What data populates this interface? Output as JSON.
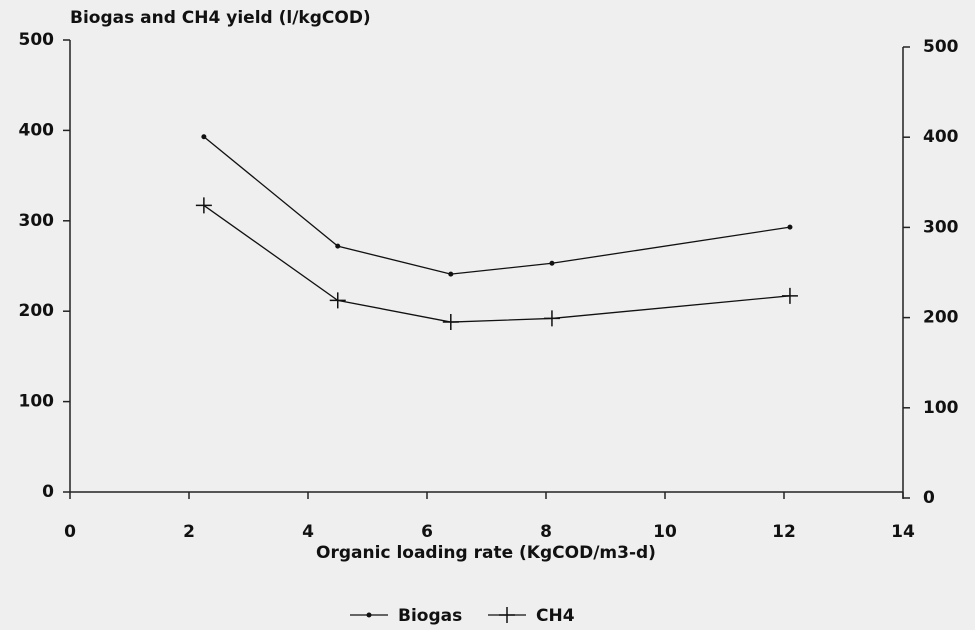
{
  "chart_data": {
    "type": "line",
    "title": "Biogas and CH4 yield (l/kgCOD)",
    "x_label": "Organic loading rate (KgCOD/m3-d)",
    "x": [
      2.25,
      4.5,
      6.4,
      8.1,
      12.1
    ],
    "series": [
      {
        "name": "Biogas",
        "color": "#111111",
        "marker": "dot",
        "values": [
          393,
          272,
          241,
          253,
          293
        ]
      },
      {
        "name": "CH4",
        "color": "#111111",
        "marker": "plus",
        "values": [
          317,
          212,
          188,
          192,
          217
        ]
      }
    ],
    "xlim": [
      0,
      14
    ],
    "xticks": [
      0,
      2,
      4,
      6,
      8,
      10,
      12,
      14
    ],
    "ylim": [
      0,
      500
    ],
    "yticks": [
      0,
      100,
      200,
      300,
      400,
      500
    ],
    "y2lim": [
      0,
      500
    ],
    "y2ticks": [
      0,
      100,
      200,
      300,
      400,
      500
    ],
    "grid": false,
    "legend": "bottom"
  }
}
